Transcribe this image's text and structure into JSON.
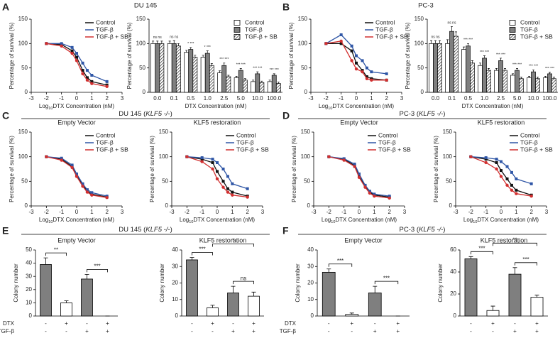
{
  "panels": [
    {
      "letter": "A",
      "title": "DU 145"
    },
    {
      "letter": "B",
      "title": "PC-3"
    },
    {
      "letter": "C",
      "title": [
        "DU 145 (",
        "KLF5 -/-",
        ")"
      ]
    },
    {
      "letter": "D",
      "title": [
        "PC-3 (",
        "KLF5 -/-",
        ")"
      ]
    },
    {
      "letter": "E",
      "title": [
        "DU 145 (",
        "KLF5 -/-",
        ")"
      ]
    },
    {
      "letter": "F",
      "title": [
        "PC-3 (",
        "KLF5 -/-",
        ")"
      ]
    }
  ],
  "chart_data": [
    {
      "type": "line",
      "y_label": "Percentage of survival (%)",
      "x_label": [
        "Log",
        "10",
        "DTX Concentration (nM)"
      ],
      "x": [
        -2,
        -1,
        -0.3,
        0,
        0.4,
        0.7,
        1,
        2
      ],
      "xlim": [
        -3,
        3
      ],
      "xticks": [
        -3,
        -2,
        -1,
        0,
        1,
        2,
        3
      ],
      "ylim": [
        0,
        150
      ],
      "yticks": [
        0,
        50,
        100,
        150
      ],
      "legend": "upper right",
      "series": [
        {
          "name": "Control",
          "color": "#111111",
          "marker": "square",
          "values": [
            100,
            98,
            85,
            72,
            45,
            30,
            22,
            15
          ]
        },
        {
          "name": "TGF-β",
          "color": "#2f56a6",
          "marker": "square",
          "values": [
            100,
            100,
            92,
            80,
            60,
            45,
            35,
            22
          ]
        },
        {
          "name": "TGF-β + SB",
          "color": "#d12f2f",
          "marker": "circle",
          "values": [
            100,
            95,
            80,
            65,
            38,
            25,
            18,
            12
          ]
        }
      ]
    },
    {
      "type": "bar",
      "y_label": "Percentage of survival (%)",
      "x_label": "DTX Concentration (nM)",
      "categories": [
        "0.0",
        "0.1",
        "0.5",
        "1.0",
        "2.5",
        "5.0",
        "10.0",
        "100.0"
      ],
      "ylim": [
        0,
        150
      ],
      "yticks": [
        0,
        50,
        100,
        150
      ],
      "legend": "upper right",
      "annotations": [
        "ns ns",
        "ns ns",
        "* ***",
        "* ***",
        "*** ***",
        "*** ***",
        "*** ***",
        "*** ***"
      ],
      "series": [
        {
          "name": "Control",
          "color": "#ffffff",
          "values": [
            100,
            100,
            82,
            72,
            40,
            30,
            22,
            22
          ],
          "errors": [
            5,
            5,
            4,
            4,
            4,
            3,
            3,
            3
          ]
        },
        {
          "name": "TGF-β",
          "color": "#7f7f7f",
          "values": [
            100,
            100,
            88,
            80,
            55,
            45,
            38,
            35
          ],
          "errors": [
            5,
            6,
            4,
            5,
            5,
            4,
            4,
            3
          ]
        },
        {
          "name": "TGF-β + SB",
          "color": "#ffffff",
          "pattern": "hatch",
          "values": [
            100,
            95,
            72,
            55,
            32,
            25,
            20,
            18
          ],
          "errors": [
            5,
            5,
            4,
            4,
            3,
            3,
            3,
            3
          ]
        }
      ]
    },
    {
      "type": "line",
      "y_label": "Percentage of survival (%)",
      "x_label": [
        "Log",
        "10",
        "DTX Concentration (nM)"
      ],
      "x": [
        -2,
        -1,
        -0.3,
        0,
        0.4,
        0.7,
        1,
        2
      ],
      "xlim": [
        -3,
        3
      ],
      "xticks": [
        -3,
        -2,
        -1,
        0,
        1,
        2,
        3
      ],
      "ylim": [
        0,
        150
      ],
      "yticks": [
        0,
        50,
        100,
        150
      ],
      "legend": "upper right",
      "series": [
        {
          "name": "Control",
          "color": "#111111",
          "marker": "square",
          "values": [
            100,
            100,
            85,
            60,
            45,
            32,
            28,
            25
          ]
        },
        {
          "name": "TGF-β",
          "color": "#2f56a6",
          "marker": "square",
          "values": [
            100,
            118,
            95,
            75,
            65,
            50,
            42,
            38
          ]
        },
        {
          "name": "TGF-β + SB",
          "color": "#d12f2f",
          "marker": "circle",
          "values": [
            100,
            105,
            65,
            48,
            42,
            28,
            25,
            25
          ]
        }
      ]
    },
    {
      "type": "bar",
      "y_label": "Percentage of survival (%)",
      "x_label": "DTX Concentration (nM)",
      "categories": [
        "0.0",
        "0.1",
        "0.5",
        "1.0",
        "2.5",
        "5.0",
        "10.0",
        "100.0"
      ],
      "ylim": [
        0,
        150
      ],
      "yticks": [
        0,
        50,
        100,
        150
      ],
      "legend": "upper right",
      "annotations": [
        "ns ns",
        "ns ns",
        "*** ***",
        "*** ***",
        "*** ***",
        "*** ***",
        "*** ***",
        "*** ***"
      ],
      "series": [
        {
          "name": "Control",
          "color": "#ffffff",
          "values": [
            100,
            100,
            88,
            55,
            45,
            35,
            30,
            30
          ],
          "errors": [
            6,
            8,
            5,
            5,
            4,
            3,
            3,
            3
          ]
        },
        {
          "name": "TGF-β",
          "color": "#7f7f7f",
          "values": [
            100,
            125,
            95,
            70,
            65,
            45,
            42,
            38
          ],
          "errors": [
            6,
            10,
            5,
            5,
            5,
            4,
            4,
            3
          ]
        },
        {
          "name": "TGF-β + SB",
          "color": "#ffffff",
          "pattern": "hatch",
          "values": [
            100,
            115,
            60,
            45,
            45,
            28,
            28,
            28
          ],
          "errors": [
            6,
            9,
            5,
            4,
            4,
            3,
            3,
            3
          ]
        }
      ]
    },
    {
      "type": "line",
      "title": "Empty Vector",
      "y_label": "Percentage of survival (%)",
      "x_label": [
        "Log",
        "10",
        "DTX Concentration (nM)"
      ],
      "x": [
        -2,
        -1,
        -0.3,
        0,
        0.4,
        0.7,
        1,
        2
      ],
      "xlim": [
        -3,
        3
      ],
      "xticks": [
        -3,
        -2,
        -1,
        0,
        1,
        2,
        3
      ],
      "ylim": [
        0,
        150
      ],
      "yticks": [
        0,
        50,
        100,
        150
      ],
      "legend": "upper right",
      "series": [
        {
          "name": "Control",
          "color": "#111111",
          "marker": "square",
          "values": [
            100,
            95,
            80,
            62,
            42,
            30,
            24,
            18
          ]
        },
        {
          "name": "TGF-β",
          "color": "#2f56a6",
          "marker": "square",
          "values": [
            100,
            97,
            83,
            65,
            45,
            33,
            27,
            20
          ]
        },
        {
          "name": "TGF-β + SB",
          "color": "#d12f2f",
          "marker": "circle",
          "values": [
            100,
            93,
            78,
            60,
            40,
            28,
            22,
            17
          ]
        }
      ]
    },
    {
      "type": "line",
      "title": "KLF5 restoration",
      "y_label": "Percentage of survival (%)",
      "x_label": [
        "Log",
        "10",
        "DTX Concentration (nM)"
      ],
      "x": [
        -2,
        -1,
        -0.3,
        0,
        0.4,
        0.7,
        1,
        2
      ],
      "xlim": [
        -3,
        3
      ],
      "xticks": [
        -3,
        -2,
        -1,
        0,
        1,
        2,
        3
      ],
      "ylim": [
        0,
        150
      ],
      "yticks": [
        0,
        50,
        100,
        150
      ],
      "legend": "upper right",
      "series": [
        {
          "name": "Control",
          "color": "#111111",
          "marker": "square",
          "values": [
            100,
            95,
            88,
            70,
            50,
            35,
            28,
            20
          ]
        },
        {
          "name": "TGF-β",
          "color": "#2f56a6",
          "marker": "square",
          "values": [
            100,
            98,
            95,
            88,
            75,
            60,
            45,
            35
          ]
        },
        {
          "name": "TGF-β + SB",
          "color": "#d12f2f",
          "marker": "circle",
          "values": [
            100,
            90,
            75,
            55,
            38,
            28,
            22,
            18
          ]
        }
      ]
    },
    {
      "type": "line",
      "title": "Empty Vector",
      "y_label": "Percentage of survival (%)",
      "x_label": [
        "Log",
        "10",
        "DTX Concentration (nM)"
      ],
      "x": [
        -2,
        -1,
        -0.3,
        0,
        0.4,
        0.7,
        1,
        2
      ],
      "xlim": [
        -3,
        3
      ],
      "xticks": [
        -3,
        -2,
        -1,
        0,
        1,
        2,
        3
      ],
      "ylim": [
        0,
        150
      ],
      "yticks": [
        0,
        50,
        100,
        150
      ],
      "legend": "upper right",
      "series": [
        {
          "name": "Control",
          "color": "#111111",
          "marker": "square",
          "values": [
            100,
            95,
            82,
            60,
            40,
            28,
            22,
            18
          ]
        },
        {
          "name": "TGF-β",
          "color": "#2f56a6",
          "marker": "square",
          "values": [
            100,
            96,
            85,
            65,
            42,
            30,
            24,
            20
          ]
        },
        {
          "name": "TGF-β + SB",
          "color": "#d12f2f",
          "marker": "circle",
          "values": [
            100,
            93,
            80,
            58,
            38,
            26,
            20,
            16
          ]
        }
      ]
    },
    {
      "type": "line",
      "title": "KLF5 restoration",
      "y_label": "Percentage of survival (%)",
      "x_label": [
        "Log",
        "10",
        "DTX Concentration (nM)"
      ],
      "x": [
        -2,
        -1,
        -0.3,
        0,
        0.4,
        0.7,
        1,
        2
      ],
      "xlim": [
        -3,
        3
      ],
      "xticks": [
        -3,
        -2,
        -1,
        0,
        1,
        2,
        3
      ],
      "ylim": [
        0,
        150
      ],
      "yticks": [
        0,
        50,
        100,
        150
      ],
      "legend": "upper right",
      "series": [
        {
          "name": "Control",
          "color": "#111111",
          "marker": "square",
          "values": [
            100,
            95,
            88,
            72,
            55,
            42,
            32,
            22
          ]
        },
        {
          "name": "TGF-β",
          "color": "#2f56a6",
          "marker": "square",
          "values": [
            100,
            98,
            95,
            90,
            80,
            68,
            55,
            45
          ]
        },
        {
          "name": "TGF-β + SB",
          "color": "#d12f2f",
          "marker": "circle",
          "values": [
            100,
            88,
            75,
            60,
            42,
            32,
            25,
            20
          ]
        }
      ]
    },
    {
      "type": "bar",
      "title": "Empty Vector",
      "y_label": "Colony number",
      "values": [
        39,
        10,
        28,
        0
      ],
      "errors": [
        5,
        1.5,
        3.5,
        0
      ],
      "colors": [
        "#7f7f7f",
        "#ffffff",
        "#7f7f7f",
        "#ffffff"
      ],
      "ylim": [
        0,
        50
      ],
      "yticks": [
        0,
        10,
        20,
        30,
        40,
        50
      ],
      "conditions": [
        {
          "label": "DTX",
          "values": [
            "-",
            "+",
            "-",
            "+"
          ]
        },
        {
          "label": "TGF-β",
          "values": [
            "-",
            "-",
            "+",
            "+"
          ]
        }
      ],
      "brackets": [
        {
          "between": [
            0,
            1
          ],
          "label": "**"
        },
        {
          "between": [
            2,
            3
          ],
          "label": "***"
        }
      ]
    },
    {
      "type": "bar",
      "title": "KLF5 restoration",
      "y_label": "Colony number",
      "values": [
        34,
        5,
        14,
        12
      ],
      "errors": [
        1.5,
        1.5,
        4,
        2.5
      ],
      "colors": [
        "#7f7f7f",
        "#ffffff",
        "#7f7f7f",
        "#ffffff"
      ],
      "ylim": [
        0,
        40
      ],
      "yticks": [
        0,
        10,
        20,
        30,
        40
      ],
      "conditions": [
        {
          "values": [
            "-",
            "+",
            "-",
            "+"
          ]
        },
        {
          "values": [
            "-",
            "-",
            "+",
            "+"
          ]
        }
      ],
      "brackets": [
        {
          "between": [
            0,
            1
          ],
          "label": "***"
        },
        {
          "between": [
            2,
            3
          ],
          "label": "ns"
        },
        {
          "between": [
            1,
            3
          ],
          "label": "*"
        }
      ]
    },
    {
      "type": "bar",
      "title": "Empty Vector",
      "y_label": "Colony number",
      "values": [
        26.5,
        1,
        14,
        0
      ],
      "errors": [
        2,
        0.8,
        4,
        0
      ],
      "colors": [
        "#7f7f7f",
        "#ffffff",
        "#7f7f7f",
        "#ffffff"
      ],
      "ylim": [
        0,
        40
      ],
      "yticks": [
        0,
        10,
        20,
        30,
        40
      ],
      "conditions": [
        {
          "label": "DTX",
          "values": [
            "-",
            "+",
            "-",
            "+"
          ]
        },
        {
          "label": "TGF-β",
          "values": [
            "-",
            "-",
            "+",
            "+"
          ]
        }
      ],
      "brackets": [
        {
          "between": [
            0,
            1
          ],
          "label": "***"
        },
        {
          "between": [
            2,
            3
          ],
          "label": "***"
        }
      ]
    },
    {
      "type": "bar",
      "title": "KLF5 restoration",
      "y_label": "Colony number",
      "values": [
        52,
        5,
        38,
        17
      ],
      "errors": [
        2,
        4,
        6,
        2
      ],
      "colors": [
        "#7f7f7f",
        "#ffffff",
        "#7f7f7f",
        "#ffffff"
      ],
      "ylim": [
        0,
        60
      ],
      "yticks": [
        0,
        20,
        40,
        60
      ],
      "conditions": [
        {
          "values": [
            "-",
            "+",
            "-",
            "+"
          ]
        },
        {
          "values": [
            "-",
            "-",
            "+",
            "+"
          ]
        }
      ],
      "brackets": [
        {
          "between": [
            0,
            1
          ],
          "label": "***"
        },
        {
          "between": [
            2,
            3
          ],
          "label": "***"
        },
        {
          "between": [
            1,
            3
          ],
          "label": "**"
        }
      ]
    }
  ]
}
